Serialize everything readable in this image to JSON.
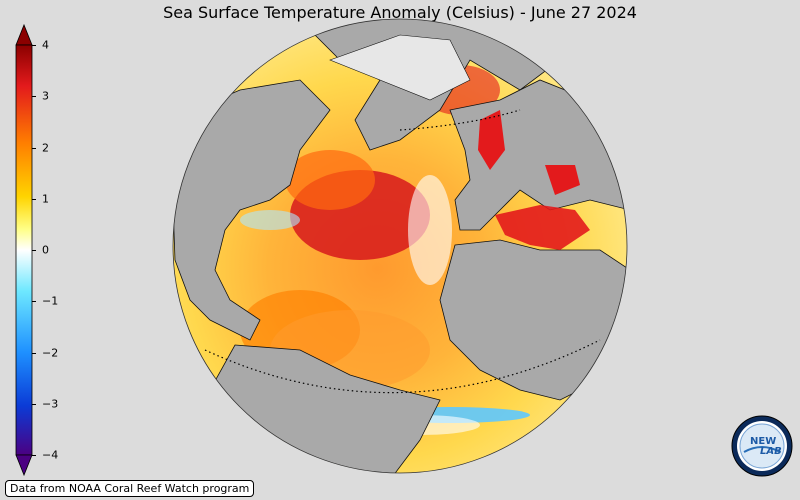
{
  "title": "Sea Surface Temperature Anomaly (Celsius) - June 27 2024",
  "colorbar": {
    "min": -4,
    "max": 4,
    "ticks": [
      4,
      3,
      2,
      1,
      0,
      -1,
      -2,
      -3,
      -4
    ],
    "tick_labels": [
      "4",
      "3",
      "2",
      "1",
      "0",
      "−1",
      "−2",
      "−3",
      "−4"
    ],
    "colors": [
      "#8b0000",
      "#e31a1c",
      "#ff7f00",
      "#ffd400",
      "#ffff66",
      "#ffffff",
      "#6ee8ff",
      "#1e90ff",
      "#0b3bd6",
      "#4b0082"
    ]
  },
  "map": {
    "projection": "orthographic",
    "center": "North Atlantic",
    "land_color": "#a9a9a9",
    "ocean_dominant_colors": [
      "#ffe066",
      "#ff9a2e",
      "#d7191c",
      "#ffffff",
      "#7fd7ff"
    ]
  },
  "source_note": "Data from NOAA Coral Reef Watch program",
  "logo": {
    "text_line1": "NEW",
    "text_line2": "LAB"
  }
}
